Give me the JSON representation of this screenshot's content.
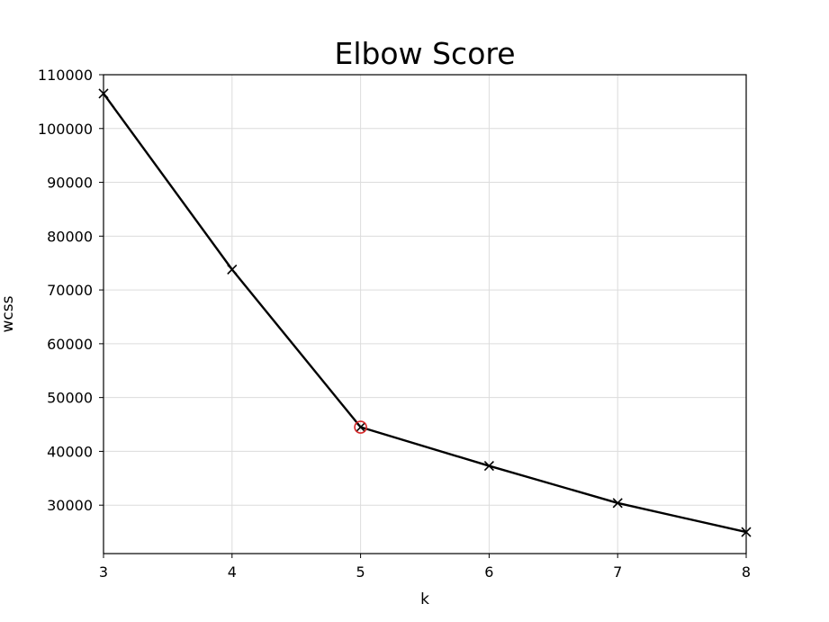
{
  "chart_data": {
    "type": "line",
    "title": "Elbow Score",
    "xlabel": "k",
    "ylabel": "wcss",
    "xlim": [
      3,
      8
    ],
    "ylim": [
      21000,
      110000
    ],
    "xticks": [
      3,
      4,
      5,
      6,
      7,
      8
    ],
    "yticks": [
      30000,
      40000,
      50000,
      60000,
      70000,
      80000,
      90000,
      100000,
      110000
    ],
    "grid": true,
    "series": [
      {
        "x": [
          3,
          4,
          5,
          6,
          7,
          8
        ],
        "y": [
          106500,
          73800,
          44500,
          37300,
          30400,
          25000
        ],
        "color": "#000000",
        "marker": "x"
      }
    ],
    "highlight": {
      "x": 5,
      "y": 44500,
      "color": "#d62728",
      "marker": "circle"
    }
  }
}
